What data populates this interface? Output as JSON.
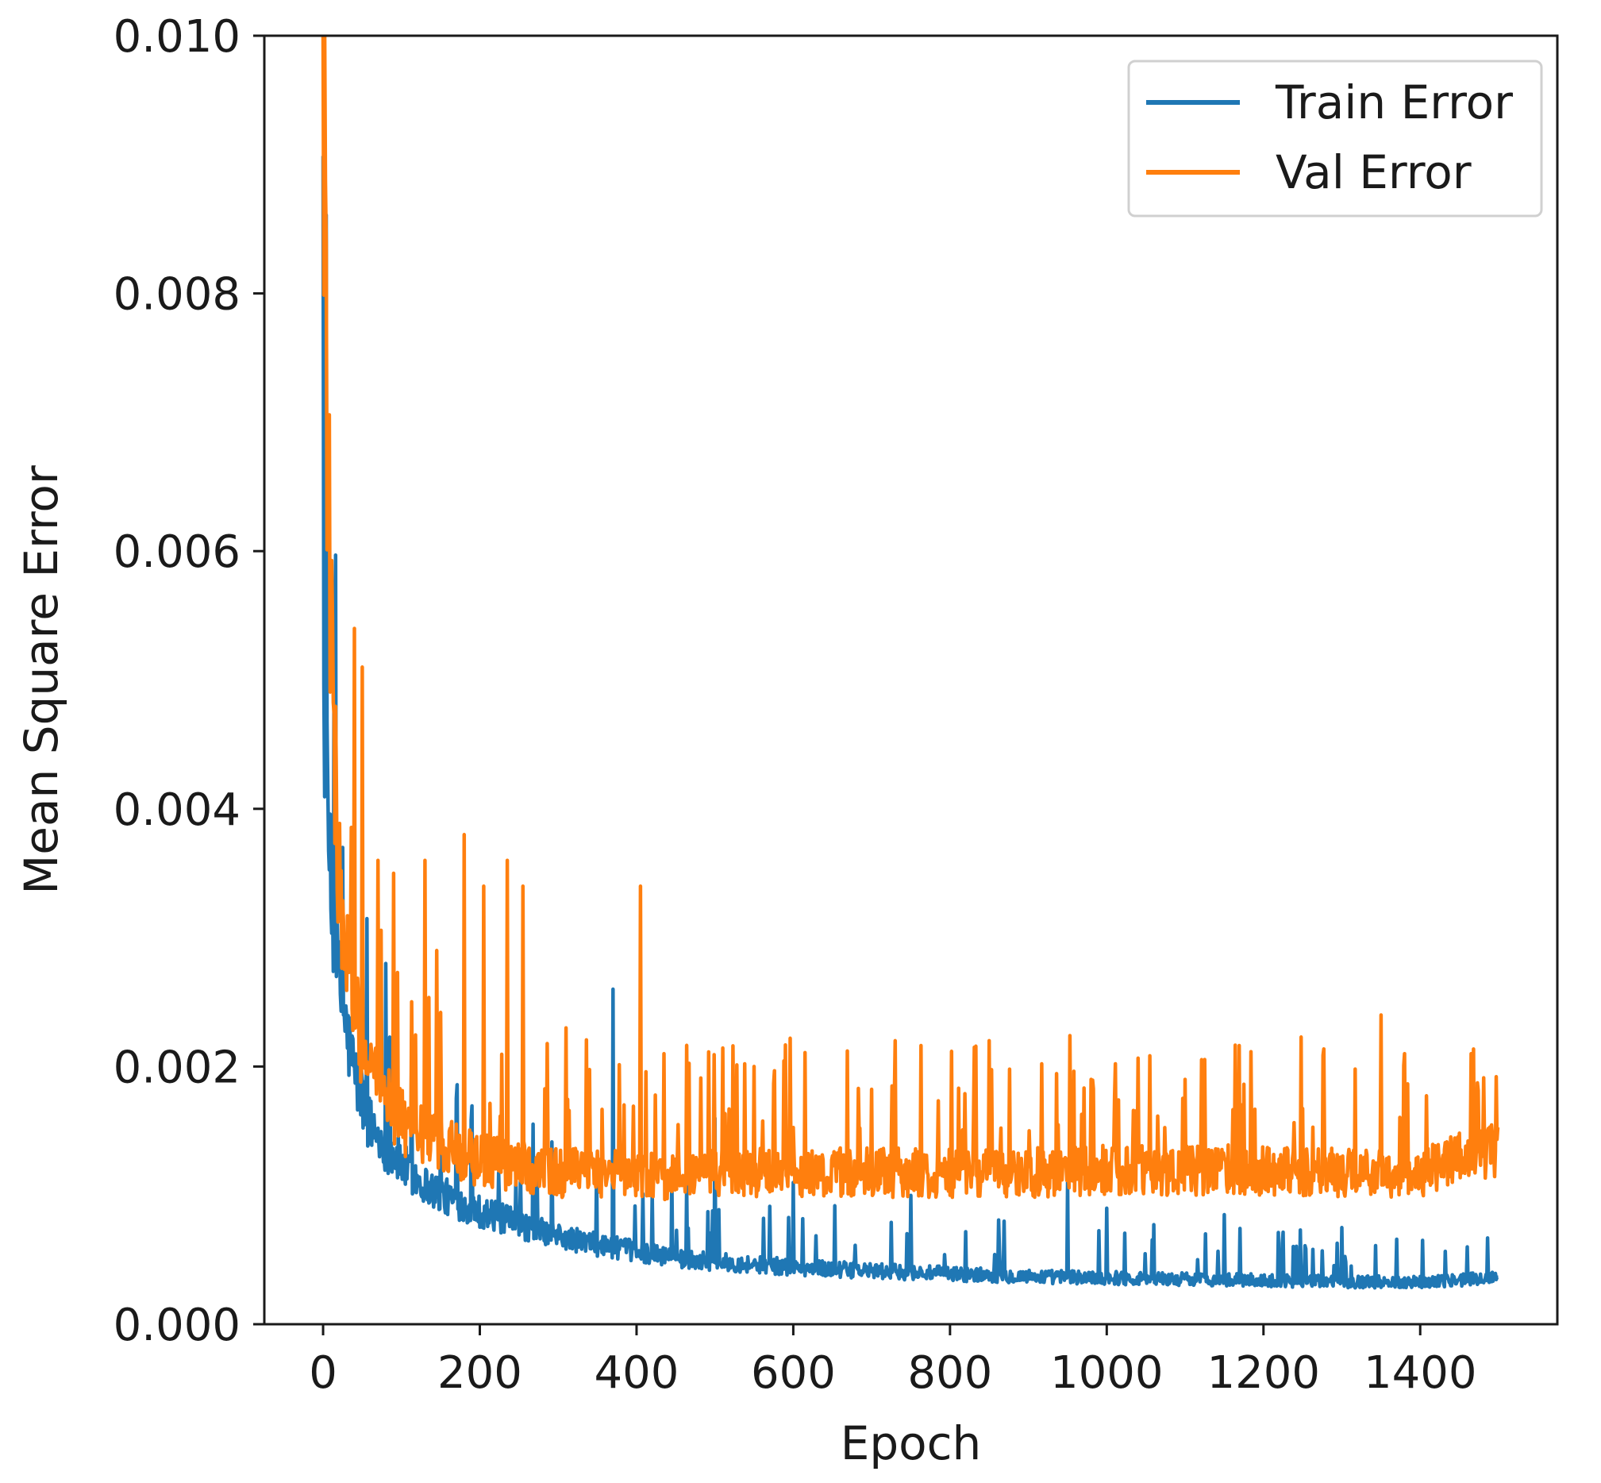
{
  "chart_data": {
    "type": "line",
    "title": "",
    "xlabel": "Epoch",
    "ylabel": "Mean Square Error",
    "xlim": [
      -75,
      1575
    ],
    "ylim": [
      0.0,
      0.01
    ],
    "xticks": [
      0,
      200,
      400,
      600,
      800,
      1000,
      1200,
      1400
    ],
    "xtick_labels": [
      "0",
      "200",
      "400",
      "600",
      "800",
      "1000",
      "1200",
      "1400"
    ],
    "yticks": [
      0.0,
      0.002,
      0.004,
      0.006,
      0.008,
      0.01
    ],
    "ytick_labels": [
      "0.000",
      "0.002",
      "0.004",
      "0.006",
      "0.008",
      "0.010"
    ],
    "grid": false,
    "legend_position": "top-right",
    "legend": [
      "Train Error",
      "Val Error"
    ],
    "series": [
      {
        "name": "Train Error",
        "color": "#1f77b4",
        "x": [
          0,
          10,
          20,
          30,
          40,
          50,
          60,
          80,
          100,
          130,
          160,
          200,
          250,
          300,
          350,
          400,
          450,
          500,
          550,
          600,
          700,
          800,
          900,
          1000,
          1100,
          1200,
          1300,
          1400,
          1499
        ],
        "y": [
          0.0048,
          0.0032,
          0.0026,
          0.0022,
          0.0019,
          0.0017,
          0.0015,
          0.00135,
          0.0012,
          0.00105,
          0.00095,
          0.00085,
          0.00075,
          0.00066,
          0.0006,
          0.00055,
          0.0005,
          0.00047,
          0.00045,
          0.00043,
          0.0004,
          0.00038,
          0.00036,
          0.00035,
          0.00034,
          0.00033,
          0.00032,
          0.00032,
          0.00035
        ],
        "spikes": [
          [
            25,
            0.0037
          ],
          [
            80,
            0.0028
          ],
          [
            150,
            0.0016
          ],
          [
            370,
            0.0026
          ],
          [
            500,
            0.0016
          ],
          [
            600,
            0.0011
          ],
          [
            750,
            0.001
          ],
          [
            950,
            0.0011
          ],
          [
            1000,
            0.0009
          ],
          [
            1150,
            0.00085
          ],
          [
            1300,
            0.00075
          ],
          [
            1460,
            0.0006
          ]
        ]
      },
      {
        "name": "Val Error",
        "color": "#ff7f0e",
        "x": [
          0,
          5,
          10,
          20,
          30,
          40,
          50,
          60,
          80,
          100,
          130,
          160,
          200,
          250,
          300,
          350,
          400,
          450,
          500,
          550,
          600,
          700,
          800,
          900,
          1000,
          1100,
          1200,
          1300,
          1400,
          1499
        ],
        "y": [
          0.0102,
          0.0073,
          0.0055,
          0.0035,
          0.0029,
          0.0025,
          0.0022,
          0.002,
          0.0018,
          0.0016,
          0.0015,
          0.0014,
          0.0013,
          0.00125,
          0.0012,
          0.0012,
          0.00118,
          0.00118,
          0.0012,
          0.0012,
          0.0012,
          0.0012,
          0.0012,
          0.0012,
          0.00122,
          0.00122,
          0.00122,
          0.0012,
          0.0012,
          0.0014
        ],
        "spikes": [
          [
            40,
            0.0054
          ],
          [
            50,
            0.0051
          ],
          [
            70,
            0.0036
          ],
          [
            90,
            0.0035
          ],
          [
            130,
            0.0036
          ],
          [
            145,
            0.0029
          ],
          [
            180,
            0.0038
          ],
          [
            205,
            0.0034
          ],
          [
            235,
            0.0036
          ],
          [
            255,
            0.0034
          ],
          [
            310,
            0.0023
          ],
          [
            405,
            0.0034
          ],
          [
            435,
            0.0021
          ],
          [
            550,
            0.002
          ],
          [
            730,
            0.0022
          ],
          [
            850,
            0.0022
          ],
          [
            980,
            0.0019
          ],
          [
            1100,
            0.0019
          ],
          [
            1350,
            0.0024
          ],
          [
            1380,
            0.0021
          ],
          [
            1465,
            0.0021
          ]
        ]
      }
    ]
  }
}
